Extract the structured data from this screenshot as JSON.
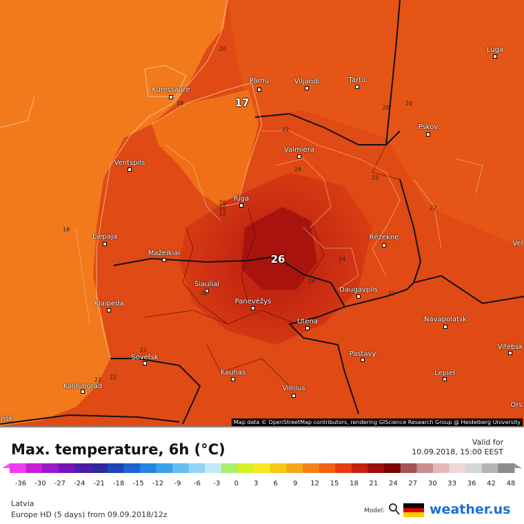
{
  "map": {
    "attribution": "Map data © OpenStreetMap contributors, rendering GIScience Research Group @ Heidelberg University",
    "cities": [
      {
        "name": "Kuressaare"
      },
      {
        "name": "Pärnu"
      },
      {
        "name": "Viljandi"
      },
      {
        "name": "Tartu"
      },
      {
        "name": "Luga"
      },
      {
        "name": "Pskov"
      },
      {
        "name": "Valmiera"
      },
      {
        "name": "Ventspils"
      },
      {
        "name": "Riga"
      },
      {
        "name": "Liepaja"
      },
      {
        "name": "Rēzekne"
      },
      {
        "name": "Mažeikiai"
      },
      {
        "name": "Šiauliai"
      },
      {
        "name": "Klaipeda"
      },
      {
        "name": "Panevėžys"
      },
      {
        "name": "Daugavpils"
      },
      {
        "name": "Utena"
      },
      {
        "name": "Navapolatsk"
      },
      {
        "name": "Sovetsk"
      },
      {
        "name": "Pastavy"
      },
      {
        "name": "Vitebsk"
      },
      {
        "name": "Kaunas"
      },
      {
        "name": "Lepiel"
      },
      {
        "name": "Kaliningrad"
      },
      {
        "name": "Vilnius"
      },
      {
        "name": "Luga"
      }
    ],
    "isolines": [
      "20",
      "20",
      "18",
      "22",
      "24",
      "22",
      "22",
      "20",
      "20",
      "18",
      "20",
      "22",
      "24",
      "24",
      "22",
      "22",
      "22",
      "22",
      "22"
    ],
    "extremes": [
      {
        "value": "17"
      },
      {
        "value": "26"
      }
    ],
    "edge_labels": [
      "Vel",
      "Ors",
      "ńsk"
    ]
  },
  "footer": {
    "title": "Max. temperature, 6h (°C)",
    "valid_label": "Valid for",
    "valid_date": "10.09.2018, 15:00 EEST",
    "region": "Latvia",
    "run": "Europe HD (5 days) from 09.09.2018/12z",
    "model_label": "Model:",
    "brand": "weather.us"
  },
  "scale": {
    "ticks": [
      "-36",
      "-30",
      "-27",
      "-24",
      "-21",
      "-18",
      "-15",
      "-12",
      "-9",
      "-6",
      "-3",
      "0",
      "3",
      "6",
      "9",
      "12",
      "15",
      "18",
      "21",
      "24",
      "27",
      "30",
      "33",
      "36",
      "42",
      "48"
    ],
    "colors": [
      "#f23cf0",
      "#c421d8",
      "#9b1ac8",
      "#7513b8",
      "#4a1ea8",
      "#2f2a9e",
      "#1d44b8",
      "#1d62d0",
      "#2584e0",
      "#3aa2ea",
      "#64bdf2",
      "#93d3f6",
      "#c3e8f9",
      "#a9f06a",
      "#d7ef2a",
      "#f5e81c",
      "#f8c718",
      "#f7a619",
      "#f58317",
      "#f26115",
      "#e43d12",
      "#c8200e",
      "#9f0e0a",
      "#7a0707",
      "#a35454",
      "#c98d8d",
      "#e4b8b8",
      "#f1d6d6",
      "#d6d6d6",
      "#b5b5b5",
      "#8c8c8c"
    ]
  }
}
